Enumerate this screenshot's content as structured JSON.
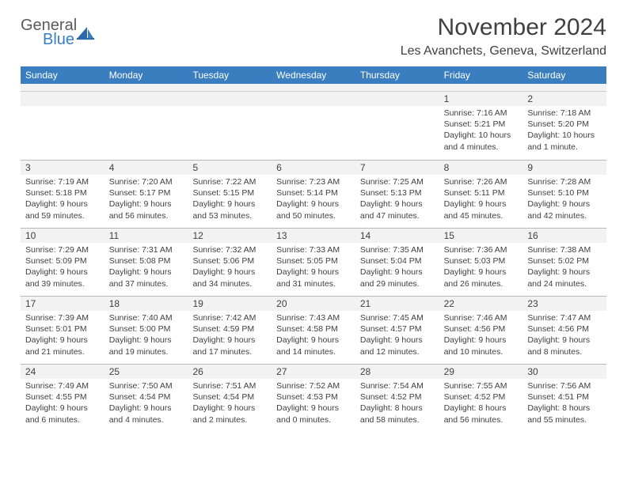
{
  "logo": {
    "general": "General",
    "blue": "Blue"
  },
  "title": "November 2024",
  "location": "Les Avanchets, Geneva, Switzerland",
  "colors": {
    "header_bg": "#3a7ebf",
    "header_text": "#ffffff",
    "daynum_bg": "#f2f2f2",
    "text": "#404040",
    "border": "#b8b8b8"
  },
  "weekdays": [
    "Sunday",
    "Monday",
    "Tuesday",
    "Wednesday",
    "Thursday",
    "Friday",
    "Saturday"
  ],
  "weeks": [
    [
      {
        "n": "",
        "sr": "",
        "ss": "",
        "dl": ""
      },
      {
        "n": "",
        "sr": "",
        "ss": "",
        "dl": ""
      },
      {
        "n": "",
        "sr": "",
        "ss": "",
        "dl": ""
      },
      {
        "n": "",
        "sr": "",
        "ss": "",
        "dl": ""
      },
      {
        "n": "",
        "sr": "",
        "ss": "",
        "dl": ""
      },
      {
        "n": "1",
        "sr": "Sunrise: 7:16 AM",
        "ss": "Sunset: 5:21 PM",
        "dl": "Daylight: 10 hours and 4 minutes."
      },
      {
        "n": "2",
        "sr": "Sunrise: 7:18 AM",
        "ss": "Sunset: 5:20 PM",
        "dl": "Daylight: 10 hours and 1 minute."
      }
    ],
    [
      {
        "n": "3",
        "sr": "Sunrise: 7:19 AM",
        "ss": "Sunset: 5:18 PM",
        "dl": "Daylight: 9 hours and 59 minutes."
      },
      {
        "n": "4",
        "sr": "Sunrise: 7:20 AM",
        "ss": "Sunset: 5:17 PM",
        "dl": "Daylight: 9 hours and 56 minutes."
      },
      {
        "n": "5",
        "sr": "Sunrise: 7:22 AM",
        "ss": "Sunset: 5:15 PM",
        "dl": "Daylight: 9 hours and 53 minutes."
      },
      {
        "n": "6",
        "sr": "Sunrise: 7:23 AM",
        "ss": "Sunset: 5:14 PM",
        "dl": "Daylight: 9 hours and 50 minutes."
      },
      {
        "n": "7",
        "sr": "Sunrise: 7:25 AM",
        "ss": "Sunset: 5:13 PM",
        "dl": "Daylight: 9 hours and 47 minutes."
      },
      {
        "n": "8",
        "sr": "Sunrise: 7:26 AM",
        "ss": "Sunset: 5:11 PM",
        "dl": "Daylight: 9 hours and 45 minutes."
      },
      {
        "n": "9",
        "sr": "Sunrise: 7:28 AM",
        "ss": "Sunset: 5:10 PM",
        "dl": "Daylight: 9 hours and 42 minutes."
      }
    ],
    [
      {
        "n": "10",
        "sr": "Sunrise: 7:29 AM",
        "ss": "Sunset: 5:09 PM",
        "dl": "Daylight: 9 hours and 39 minutes."
      },
      {
        "n": "11",
        "sr": "Sunrise: 7:31 AM",
        "ss": "Sunset: 5:08 PM",
        "dl": "Daylight: 9 hours and 37 minutes."
      },
      {
        "n": "12",
        "sr": "Sunrise: 7:32 AM",
        "ss": "Sunset: 5:06 PM",
        "dl": "Daylight: 9 hours and 34 minutes."
      },
      {
        "n": "13",
        "sr": "Sunrise: 7:33 AM",
        "ss": "Sunset: 5:05 PM",
        "dl": "Daylight: 9 hours and 31 minutes."
      },
      {
        "n": "14",
        "sr": "Sunrise: 7:35 AM",
        "ss": "Sunset: 5:04 PM",
        "dl": "Daylight: 9 hours and 29 minutes."
      },
      {
        "n": "15",
        "sr": "Sunrise: 7:36 AM",
        "ss": "Sunset: 5:03 PM",
        "dl": "Daylight: 9 hours and 26 minutes."
      },
      {
        "n": "16",
        "sr": "Sunrise: 7:38 AM",
        "ss": "Sunset: 5:02 PM",
        "dl": "Daylight: 9 hours and 24 minutes."
      }
    ],
    [
      {
        "n": "17",
        "sr": "Sunrise: 7:39 AM",
        "ss": "Sunset: 5:01 PM",
        "dl": "Daylight: 9 hours and 21 minutes."
      },
      {
        "n": "18",
        "sr": "Sunrise: 7:40 AM",
        "ss": "Sunset: 5:00 PM",
        "dl": "Daylight: 9 hours and 19 minutes."
      },
      {
        "n": "19",
        "sr": "Sunrise: 7:42 AM",
        "ss": "Sunset: 4:59 PM",
        "dl": "Daylight: 9 hours and 17 minutes."
      },
      {
        "n": "20",
        "sr": "Sunrise: 7:43 AM",
        "ss": "Sunset: 4:58 PM",
        "dl": "Daylight: 9 hours and 14 minutes."
      },
      {
        "n": "21",
        "sr": "Sunrise: 7:45 AM",
        "ss": "Sunset: 4:57 PM",
        "dl": "Daylight: 9 hours and 12 minutes."
      },
      {
        "n": "22",
        "sr": "Sunrise: 7:46 AM",
        "ss": "Sunset: 4:56 PM",
        "dl": "Daylight: 9 hours and 10 minutes."
      },
      {
        "n": "23",
        "sr": "Sunrise: 7:47 AM",
        "ss": "Sunset: 4:56 PM",
        "dl": "Daylight: 9 hours and 8 minutes."
      }
    ],
    [
      {
        "n": "24",
        "sr": "Sunrise: 7:49 AM",
        "ss": "Sunset: 4:55 PM",
        "dl": "Daylight: 9 hours and 6 minutes."
      },
      {
        "n": "25",
        "sr": "Sunrise: 7:50 AM",
        "ss": "Sunset: 4:54 PM",
        "dl": "Daylight: 9 hours and 4 minutes."
      },
      {
        "n": "26",
        "sr": "Sunrise: 7:51 AM",
        "ss": "Sunset: 4:54 PM",
        "dl": "Daylight: 9 hours and 2 minutes."
      },
      {
        "n": "27",
        "sr": "Sunrise: 7:52 AM",
        "ss": "Sunset: 4:53 PM",
        "dl": "Daylight: 9 hours and 0 minutes."
      },
      {
        "n": "28",
        "sr": "Sunrise: 7:54 AM",
        "ss": "Sunset: 4:52 PM",
        "dl": "Daylight: 8 hours and 58 minutes."
      },
      {
        "n": "29",
        "sr": "Sunrise: 7:55 AM",
        "ss": "Sunset: 4:52 PM",
        "dl": "Daylight: 8 hours and 56 minutes."
      },
      {
        "n": "30",
        "sr": "Sunrise: 7:56 AM",
        "ss": "Sunset: 4:51 PM",
        "dl": "Daylight: 8 hours and 55 minutes."
      }
    ]
  ]
}
